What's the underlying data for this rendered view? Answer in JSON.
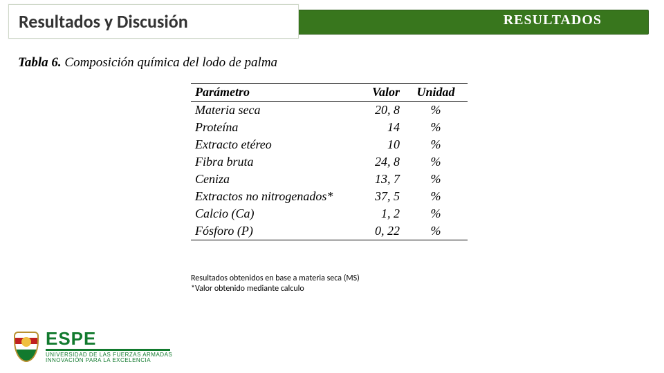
{
  "header": {
    "left_tab": "Resultados y Discusión",
    "right_title": "RESULTADOS",
    "bar_color": "#38761d",
    "tab_bg": "#ffffff"
  },
  "caption": {
    "label": "Tabla 6.",
    "text": "Composición química del lodo de palma"
  },
  "table": {
    "columns": [
      "Parámetro",
      "Valor",
      "Unidad"
    ],
    "rows": [
      [
        "Materia seca",
        "20, 8",
        "%"
      ],
      [
        "Proteína",
        "14",
        "%"
      ],
      [
        "Extracto etéreo",
        "10",
        "%"
      ],
      [
        "Fibra bruta",
        "24, 8",
        "%"
      ],
      [
        "Ceniza",
        "13, 7",
        "%"
      ],
      [
        "Extractos no nitrogenados*",
        "37, 5",
        "%"
      ],
      [
        "Calcio (Ca)",
        "1, 2",
        "%"
      ],
      [
        "Fósforo (P)",
        "0, 22",
        "%"
      ]
    ],
    "col_align": [
      "left",
      "right",
      "center"
    ],
    "border_color": "#000000",
    "font_size": 18
  },
  "notes": {
    "line1": "Resultados obtenidos en base a materia seca (MS)",
    "line2": "*Valor obtenido mediante calculo"
  },
  "logo": {
    "name": "ESPE",
    "subtitle": "UNIVERSIDAD DE LAS FUERZAS ARMADAS",
    "tagline": "INNOVACIÓN PARA LA EXCELENCIA",
    "brand_color": "#127a2e"
  }
}
